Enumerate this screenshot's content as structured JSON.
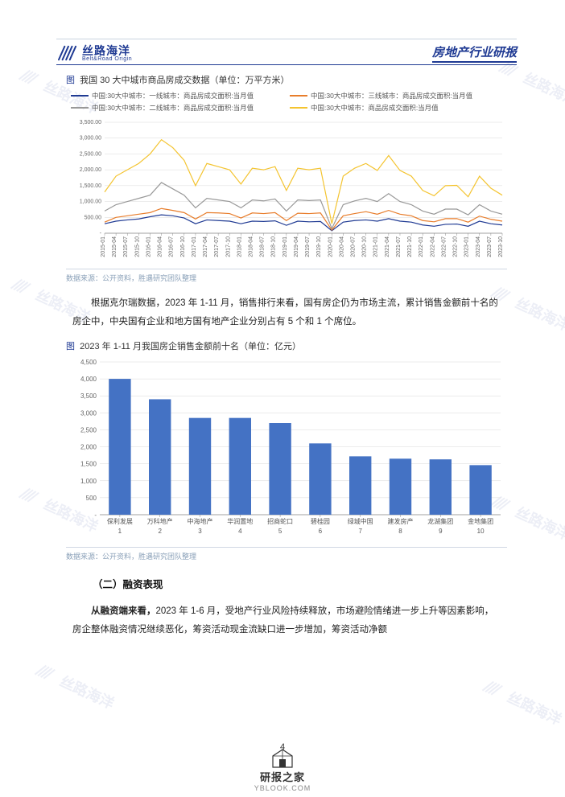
{
  "header": {
    "logo_cn": "丝路海洋",
    "logo_en": "Belt&Road Origin",
    "doc_title": "房地产行业研报"
  },
  "watermark": {
    "text": "丝路海洋"
  },
  "chart1": {
    "title_prefix": "图",
    "title": "我国 30 大中城市商品房成交数据（单位：万平方米）",
    "type": "line",
    "xlabels": [
      "2015-01",
      "2015-04",
      "2015-07",
      "2015-10",
      "2016-01",
      "2016-04",
      "2016-07",
      "2016-10",
      "2017-01",
      "2017-04",
      "2017-07",
      "2017-10",
      "2018-01",
      "2018-04",
      "2018-07",
      "2018-10",
      "2019-01",
      "2019-04",
      "2019-07",
      "2019-10",
      "2020-01",
      "2020-04",
      "2020-07",
      "2020-10",
      "2021-01",
      "2021-04",
      "2021-07",
      "2021-10",
      "2022-01",
      "2022-04",
      "2022-07",
      "2022-10",
      "2023-01",
      "2023-04",
      "2023-07",
      "2023-10"
    ],
    "ylim": [
      0,
      3500
    ],
    "ytick_step": 500,
    "yticks_labels": [
      "-",
      "500.00",
      "1,000.00",
      "1,500.00",
      "2,000.00",
      "2,500.00",
      "3,000.00",
      "3,500.00"
    ],
    "background_color": "#ffffff",
    "grid_color": "#d8d8d8",
    "axis_fontsize": 7,
    "line_width": 1.2,
    "series": [
      {
        "name": "中国:30大中城市：一线城市：商品房成交面积:当月值",
        "color": "#1f3a93",
        "values": [
          300,
          380,
          420,
          450,
          520,
          580,
          550,
          480,
          300,
          420,
          400,
          380,
          300,
          380,
          370,
          390,
          250,
          380,
          360,
          370,
          80,
          350,
          400,
          420,
          380,
          460,
          380,
          350,
          260,
          220,
          280,
          290,
          220,
          380,
          300,
          260
        ]
      },
      {
        "name": "中国:30大中城市：三线城市：商品房成交面积:当月值",
        "color": "#e87d2b",
        "values": [
          350,
          500,
          550,
          600,
          650,
          780,
          720,
          650,
          450,
          650,
          640,
          620,
          480,
          640,
          620,
          650,
          400,
          630,
          620,
          640,
          100,
          550,
          620,
          680,
          600,
          720,
          600,
          550,
          400,
          360,
          460,
          460,
          350,
          540,
          440,
          380
        ]
      },
      {
        "name": "中国:30大中城市：二线城市：商品房成交面积:当月值",
        "color": "#999999",
        "values": [
          700,
          900,
          1000,
          1100,
          1200,
          1600,
          1400,
          1200,
          800,
          1100,
          1050,
          1000,
          800,
          1050,
          1020,
          1080,
          700,
          1050,
          1030,
          1050,
          150,
          900,
          1020,
          1100,
          1000,
          1250,
          1000,
          900,
          700,
          600,
          760,
          760,
          580,
          900,
          700,
          600
        ]
      },
      {
        "name": "中国:30大中城市：商品房成交面积:当月值",
        "color": "#f4c430",
        "values": [
          1300,
          1800,
          2000,
          2200,
          2500,
          2950,
          2700,
          2300,
          1500,
          2200,
          2100,
          2000,
          1550,
          2050,
          2000,
          2100,
          1350,
          2050,
          2000,
          2050,
          300,
          1800,
          2050,
          2200,
          1980,
          2450,
          1980,
          1800,
          1350,
          1180,
          1500,
          1510,
          1150,
          1800,
          1420,
          1200
        ]
      }
    ]
  },
  "source_note": "数据来源：公开资料，胜遇研究团队整理",
  "para1": "根据克尔瑞数据，2023 年 1-11 月，销售排行来看，国有房企仍为市场主流，累计销售金额前十名的房企中，中央国有企业和地方国有地产企业分别占有 5 个和 1 个席位。",
  "chart2": {
    "title_prefix": "图",
    "title": "2023 年 1-11 月我国房企销售金额前十名（单位：亿元）",
    "type": "bar",
    "xlabels_top": [
      "保利发展",
      "万科地产",
      "中海地产",
      "华润置地",
      "招商蛇口",
      "碧桂园",
      "绿城中国",
      "建发房产",
      "龙湖集团",
      "金地集团"
    ],
    "xlabels_bottom": [
      "1",
      "2",
      "3",
      "4",
      "5",
      "6",
      "7",
      "8",
      "9",
      "10"
    ],
    "values": [
      4000,
      3400,
      2850,
      2850,
      2700,
      2100,
      1720,
      1650,
      1630,
      1460
    ],
    "bar_color": "#4472c4",
    "ylim": [
      0,
      4500
    ],
    "ytick_step": 500,
    "yticks_labels": [
      "-",
      "500",
      "1,000",
      "1,500",
      "2,000",
      "2,500",
      "3,000",
      "3,500",
      "4,000",
      "4,500"
    ],
    "background_color": "#ffffff",
    "grid_color": "#d8d8d8",
    "axis_fontsize": 8,
    "bar_width": 0.55
  },
  "subhead": "（二）融资表现",
  "para2_lead": "从融资端来看，",
  "para2_rest": "2023 年 1-6 月，受地产行业风险持续释放，市场避险情绪进一步上升等因素影响，房企整体融资情况继续恶化，筹资活动现金流缺口进一步增加，筹资活动净额",
  "page_number": "4",
  "footer": {
    "cn": "研报之家",
    "en": "YBLOOK.COM"
  },
  "colors": {
    "brand": "#1f3a93",
    "text": "#222222",
    "grid": "#d8d8d8",
    "border": "#c8d4e0",
    "src": "#8aa0b8"
  }
}
